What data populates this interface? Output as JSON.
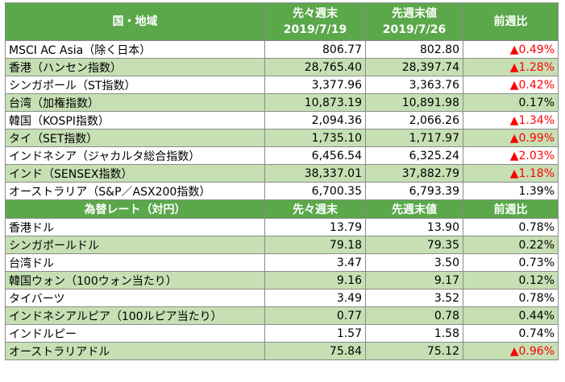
{
  "header": {
    "region": "国・地域",
    "prev_prev_line1": "先々週末",
    "prev_prev_line2": "2019/7/19",
    "prev_line1": "先週末値",
    "prev_line2": "2019/7/26",
    "change": "前週比"
  },
  "indices": [
    {
      "name": "MSCI AC Asia（除く日本）",
      "pp": "806.77",
      "p": "802.80",
      "chg": "▲0.49%",
      "neg": true
    },
    {
      "name": "香港（ハンセン指数）",
      "pp": "28,765.40",
      "p": "28,397.74",
      "chg": "▲1.28%",
      "neg": true
    },
    {
      "name": "シンガポール（ST指数）",
      "pp": "3,377.96",
      "p": "3,363.76",
      "chg": "▲0.42%",
      "neg": true
    },
    {
      "name": "台湾（加権指数）",
      "pp": "10,873.19",
      "p": "10,891.98",
      "chg": "0.17%",
      "neg": false
    },
    {
      "name": "韓国（KOSPI指数）",
      "pp": "2,094.36",
      "p": "2,066.26",
      "chg": "▲1.34%",
      "neg": true
    },
    {
      "name": "タイ（SET指数）",
      "pp": "1,735.10",
      "p": "1,717.97",
      "chg": "▲0.99%",
      "neg": true
    },
    {
      "name": "インドネシア（ジャカルタ総合指数）",
      "pp": "6,456.54",
      "p": "6,325.24",
      "chg": "▲2.03%",
      "neg": true
    },
    {
      "name": "インド（SENSEX指数）",
      "pp": "38,337.01",
      "p": "37,882.79",
      "chg": "▲1.18%",
      "neg": true
    },
    {
      "name": "オーストラリア（S&P／ASX200指数）",
      "pp": "6,700.35",
      "p": "6,793.39",
      "chg": "1.39%",
      "neg": false
    }
  ],
  "fx_header": {
    "title": "為替レート（対円）",
    "prev_prev": "先々週末",
    "prev": "先週末値",
    "change": "前週比"
  },
  "fx": [
    {
      "name": "香港ドル",
      "pp": "13.79",
      "p": "13.90",
      "chg": "0.78%",
      "neg": false
    },
    {
      "name": "シンガポールドル",
      "pp": "79.18",
      "p": "79.35",
      "chg": "0.22%",
      "neg": false
    },
    {
      "name": "台湾ドル",
      "pp": "3.47",
      "p": "3.50",
      "chg": "0.73%",
      "neg": false
    },
    {
      "name": "韓国ウォン（100ウォン当たり）",
      "pp": "9.16",
      "p": "9.17",
      "chg": "0.12%",
      "neg": false
    },
    {
      "name": "タイバーツ",
      "pp": "3.49",
      "p": "3.52",
      "chg": "0.78%",
      "neg": false
    },
    {
      "name": "インドネシアルピア（100ルピア当たり）",
      "pp": "0.77",
      "p": "0.78",
      "chg": "0.44%",
      "neg": false
    },
    {
      "name": "インドルピー",
      "pp": "1.57",
      "p": "1.58",
      "chg": "0.74%",
      "neg": false
    },
    {
      "name": "オーストラリアドル",
      "pp": "75.84",
      "p": "75.12",
      "chg": "▲0.96%",
      "neg": true
    }
  ],
  "colors": {
    "header_bg": "#5aa84a",
    "alt_row_bg": "#c6e0b4",
    "negative_text": "#ff0000"
  }
}
